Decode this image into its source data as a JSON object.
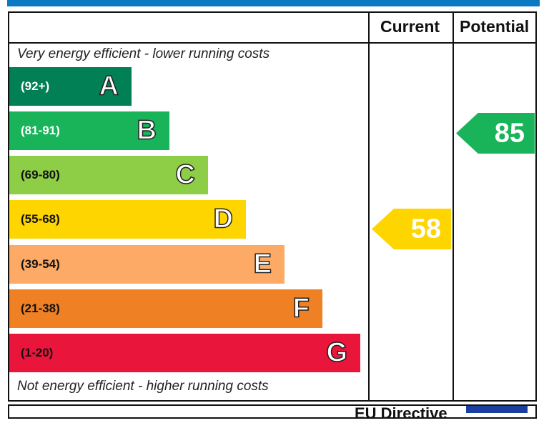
{
  "chart_data": {
    "type": "bar",
    "columns": [
      "Current",
      "Potential"
    ],
    "top_note": "Very energy efficient - lower running costs",
    "bottom_note": "Not energy efficient - higher running costs",
    "bands": [
      {
        "range": "(92+)",
        "letter": "A",
        "color": "#008054"
      },
      {
        "range": "(81-91)",
        "letter": "B",
        "color": "#19b459"
      },
      {
        "range": "(69-80)",
        "letter": "C",
        "color": "#8dce46"
      },
      {
        "range": "(55-68)",
        "letter": "D",
        "color": "#ffd500"
      },
      {
        "range": "(39-54)",
        "letter": "E",
        "color": "#fcaa65"
      },
      {
        "range": "(21-38)",
        "letter": "F",
        "color": "#ef8023"
      },
      {
        "range": "(1-20)",
        "letter": "G",
        "color": "#e9153b"
      }
    ],
    "current": {
      "value": "58",
      "band": "D",
      "color": "#ffd500"
    },
    "potential": {
      "value": "85",
      "band": "B",
      "color": "#19b459"
    }
  },
  "footer": {
    "text": "EU Directive"
  }
}
